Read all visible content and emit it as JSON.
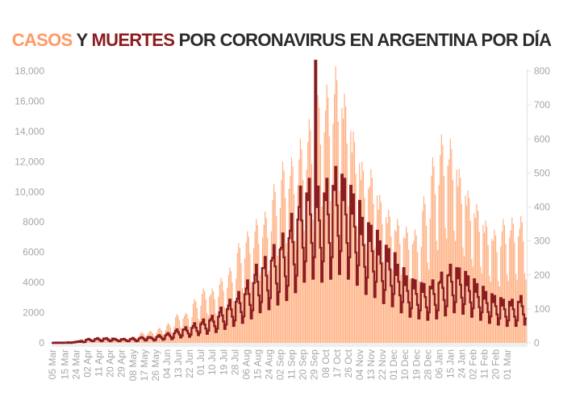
{
  "chart_data": {
    "type": "bar+line",
    "title": {
      "part1": "CASOS",
      "part2": " Y ",
      "part3": "MUERTES",
      "part4": " POR CORONAVIRUS EN ARGENTINA POR DÍA"
    },
    "colors": {
      "cases": "#ffb184",
      "cases_title": "#ff9a66",
      "deaths": "#8b1c1f",
      "title": "#2b2b2b",
      "axis_text": "#a6a6a6"
    },
    "start_date": "2020-03-05",
    "x_tick_labels": [
      "05 Mar",
      "15 Mar",
      "24 Mar",
      "02 Apr",
      "11 Apr",
      "20 Apr",
      "29 Apr",
      "08 May",
      "17 May",
      "26 May",
      "04 Jun",
      "13 Jun",
      "22 Jun",
      "01 Jul",
      "10 Jul",
      "19 Jul",
      "28 Jul",
      "06 Aug",
      "15 Aug",
      "24 Aug",
      "02 Sep",
      "11 Sep",
      "20 Sep",
      "29 Sep",
      "08 Oct",
      "17 Oct",
      "26 Oct",
      "04 Nov",
      "13 Nov",
      "22 Nov",
      "01 Dec",
      "10 Dec",
      "19 Dec",
      "28 Dec",
      "06 Jan",
      "15 Jan",
      "24 Jan",
      "02 Feb",
      "11 Feb",
      "20 Feb",
      "01 Mar"
    ],
    "y_left": {
      "label": "Casos",
      "ylim": [
        0,
        18000
      ],
      "ticks": [
        "0",
        "2000",
        "4000",
        "6000",
        "8000",
        "10,000",
        "12,000",
        "14,000",
        "16,000",
        "18,000"
      ]
    },
    "y_right": {
      "label": "Muertes",
      "ylim": [
        0,
        800
      ],
      "ticks": [
        "0",
        "100",
        "200",
        "300",
        "400",
        "500",
        "600",
        "700",
        "800"
      ]
    },
    "series": [
      {
        "name": "Casos",
        "type": "bar",
        "axis": "left",
        "values": [
          1,
          1,
          3,
          5,
          5,
          2,
          10,
          12,
          20,
          15,
          30,
          20,
          35,
          40,
          60,
          90,
          100,
          60,
          30,
          100,
          120,
          100,
          150,
          200,
          250,
          130,
          100,
          200,
          220,
          250,
          240,
          200,
          140,
          120,
          210,
          220,
          250,
          240,
          200,
          140,
          120,
          210,
          270,
          300,
          280,
          240,
          160,
          150,
          260,
          270,
          300,
          280,
          240,
          160,
          150,
          260,
          310,
          350,
          330,
          280,
          190,
          170,
          300,
          400,
          450,
          430,
          360,
          250,
          220,
          380,
          630,
          700,
          660,
          560,
          380,
          350,
          600,
          720,
          800,
          760,
          640,
          440,
          400,
          680,
          900,
          1000,
          950,
          800,
          550,
          500,
          850,
          1170,
          1300,
          1230,
          1040,
          710,
          650,
          1100,
          1710,
          1900,
          1800,
          1520,
          1040,
          950,
          1610,
          1800,
          2000,
          1900,
          1600,
          1100,
          1000,
          1700,
          2610,
          2900,
          2750,
          2320,
          1590,
          1450,
          2460,
          3240,
          3600,
          3420,
          2880,
          1980,
          1800,
          3060,
          3240,
          3600,
          3420,
          2880,
          1980,
          1800,
          3060,
          3870,
          4300,
          4080,
          3440,
          2360,
          2150,
          3650,
          4500,
          5000,
          4750,
          4000,
          2750,
          2500,
          4250,
          5940,
          6600,
          6270,
          5280,
          3630,
          3300,
          5610,
          6660,
          7400,
          7030,
          5920,
          4070,
          3700,
          6290,
          7380,
          8200,
          7790,
          6560,
          4510,
          4100,
          6970,
          7830,
          8700,
          8260,
          6960,
          4780,
          4350,
          7390,
          9450,
          10500,
          9970,
          8400,
          5770,
          5250,
          8920,
          10800,
          12000,
          11400,
          9600,
          6600,
          6000,
          10200,
          11070,
          12300,
          11680,
          9840,
          6760,
          6150,
          10450,
          12150,
          13500,
          12820,
          10800,
          7420,
          6750,
          11470,
          13320,
          14800,
          14060,
          11840,
          8140,
          7400,
          12580,
          14760,
          16400,
          15580,
          13120,
          9020,
          8200,
          13940,
          15390,
          17100,
          16240,
          13680,
          9400,
          8550,
          14530,
          16470,
          18300,
          17380,
          14640,
          10060,
          9150,
          15550,
          14850,
          16500,
          15670,
          13200,
          9070,
          8250,
          14020,
          12600,
          14000,
          13300,
          11200,
          7700,
          7000,
          11900,
          10800,
          12000,
          11400,
          9600,
          6600,
          6000,
          10200,
          10350,
          11500,
          10920,
          9200,
          6320,
          5750,
          9770,
          8820,
          9800,
          9310,
          7840,
          5390,
          4900,
          8330,
          7920,
          8800,
          8360,
          7040,
          4840,
          4400,
          7480,
          7380,
          8200,
          7790,
          6560,
          4510,
          4100,
          6970,
          6930,
          7700,
          7310,
          6160,
          4230,
          3850,
          6540,
          6750,
          7500,
          7120,
          6000,
          4120,
          3750,
          6370,
          8730,
          9700,
          9210,
          7760,
          5330,
          4850,
          8240,
          11070,
          12300,
          11680,
          9840,
          6760,
          6150,
          10450,
          12420,
          13800,
          13110,
          11040,
          7590,
          6900,
          11730,
          12150,
          13500,
          12820,
          10800,
          7420,
          6750,
          11470,
          10350,
          11500,
          10920,
          9200,
          6320,
          5750,
          9770,
          9090,
          10100,
          9590,
          8080,
          5550,
          5050,
          8580,
          8280,
          9200,
          8740,
          7360,
          5060,
          4600,
          7820,
          7290,
          8100,
          7690,
          6480,
          4450,
          4050,
          6880,
          6750,
          7500,
          7120,
          6000,
          4120,
          3750,
          6370,
          7380,
          8200,
          7790,
          6560,
          4510,
          4100,
          6970,
          7470,
          8300,
          7880,
          6640,
          4560,
          4150,
          7050,
          7560,
          8400,
          7980,
          6720,
          4620,
          4200
        ]
      },
      {
        "name": "Muertes",
        "type": "line-step",
        "axis": "right",
        "values": [
          0,
          0,
          1,
          0,
          1,
          0,
          1,
          0,
          1,
          0,
          1,
          1,
          0,
          2,
          1,
          0,
          2,
          1,
          3,
          2,
          4,
          5,
          3,
          6,
          4,
          2,
          3,
          9,
          10,
          12,
          9,
          7,
          5,
          6,
          11,
          12,
          14,
          11,
          8,
          5,
          7,
          13,
          12,
          14,
          11,
          8,
          5,
          7,
          13,
          10,
          12,
          9,
          7,
          5,
          6,
          11,
          10,
          12,
          9,
          7,
          5,
          6,
          11,
          12,
          14,
          11,
          8,
          5,
          7,
          13,
          15,
          17,
          14,
          11,
          7,
          9,
          17,
          15,
          17,
          14,
          11,
          7,
          9,
          17,
          20,
          23,
          18,
          14,
          9,
          12,
          22,
          25,
          29,
          23,
          18,
          11,
          15,
          28,
          35,
          40,
          32,
          25,
          16,
          21,
          39,
          40,
          46,
          36,
          28,
          18,
          24,
          44,
          50,
          58,
          45,
          35,
          23,
          30,
          55,
          60,
          69,
          54,
          42,
          27,
          36,
          66,
          70,
          80,
          63,
          49,
          32,
          42,
          77,
          90,
          104,
          81,
          63,
          41,
          54,
          99,
          110,
          127,
          99,
          77,
          50,
          66,
          121,
          130,
          150,
          117,
          91,
          59,
          78,
          143,
          160,
          184,
          144,
          112,
          72,
          96,
          176,
          200,
          230,
          180,
          140,
          90,
          120,
          220,
          220,
          253,
          198,
          154,
          99,
          132,
          242,
          250,
          288,
          225,
          175,
          113,
          150,
          275,
          280,
          322,
          252,
          196,
          126,
          168,
          308,
          330,
          380,
          297,
          231,
          149,
          198,
          363,
          400,
          460,
          360,
          280,
          180,
          240,
          440,
          420,
          483,
          378,
          294,
          189,
          252,
          830,
          400,
          460,
          360,
          280,
          180,
          240,
          440,
          420,
          483,
          378,
          294,
          189,
          252,
          462,
          450,
          518,
          405,
          315,
          203,
          270,
          495,
          420,
          483,
          378,
          294,
          189,
          252,
          462,
          380,
          437,
          342,
          266,
          171,
          228,
          418,
          320,
          368,
          288,
          224,
          144,
          192,
          352,
          300,
          345,
          270,
          210,
          135,
          180,
          330,
          260,
          299,
          234,
          182,
          117,
          156,
          286,
          240,
          276,
          216,
          168,
          108,
          144,
          264,
          200,
          230,
          180,
          140,
          90,
          120,
          220,
          170,
          196,
          153,
          119,
          77,
          102,
          187,
          160,
          184,
          144,
          112,
          72,
          96,
          176,
          150,
          173,
          135,
          105,
          68,
          90,
          165,
          160,
          184,
          144,
          112,
          72,
          96,
          176,
          180,
          207,
          162,
          126,
          81,
          108,
          198,
          200,
          230,
          180,
          140,
          90,
          120,
          220,
          190,
          219,
          171,
          133,
          86,
          114,
          209,
          170,
          196,
          153,
          119,
          77,
          102,
          187,
          150,
          173,
          135,
          105,
          68,
          90,
          165,
          130,
          150,
          117,
          91,
          59,
          78,
          143,
          120,
          138,
          108,
          84,
          54,
          72,
          132,
          110,
          127,
          99,
          77,
          50,
          66,
          121,
          110,
          127,
          99,
          77,
          50,
          66,
          121,
          120,
          138,
          108,
          84,
          54,
          72
        ]
      }
    ],
    "grid": false,
    "legend": "none (colored words in title)"
  }
}
